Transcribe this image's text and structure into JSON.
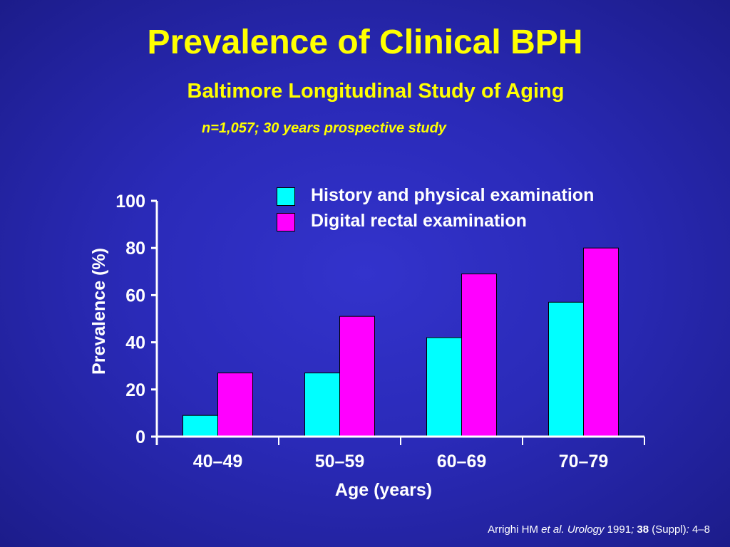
{
  "slide": {
    "title": "Prevalence of Clinical BPH",
    "subtitle": "Baltimore Longitudinal Study of Aging",
    "note": "n=1,057; 30 years prospective study"
  },
  "citation": {
    "author": "Arrighi HM ",
    "etal": "et al. Urology",
    "year": " 1991",
    "sep": "; ",
    "volume": "38",
    "suppl": " (Suppl)",
    "colon": ": ",
    "pages": "4–8"
  },
  "colors": {
    "background": "#2a2ab8",
    "title": "#ffff00",
    "history_series": "#00ffff",
    "digital_series": "#ff00ff",
    "axis": "#ffffff"
  },
  "chart_data": {
    "type": "bar",
    "xlabel": "Age (years)",
    "ylabel": "Prevalence (%)",
    "ylim": [
      0,
      100
    ],
    "yticks": [
      "0",
      "20",
      "40",
      "60",
      "80",
      "100"
    ],
    "categories": [
      "40–49",
      "50–59",
      "60–69",
      "70–79"
    ],
    "legend_position": "top-right",
    "series": [
      {
        "name": "History and physical examination",
        "color": "#00ffff",
        "values": [
          9,
          27,
          42,
          57
        ]
      },
      {
        "name": "Digital rectal examination",
        "color": "#ff00ff",
        "values": [
          27,
          51,
          69,
          80
        ]
      }
    ]
  }
}
